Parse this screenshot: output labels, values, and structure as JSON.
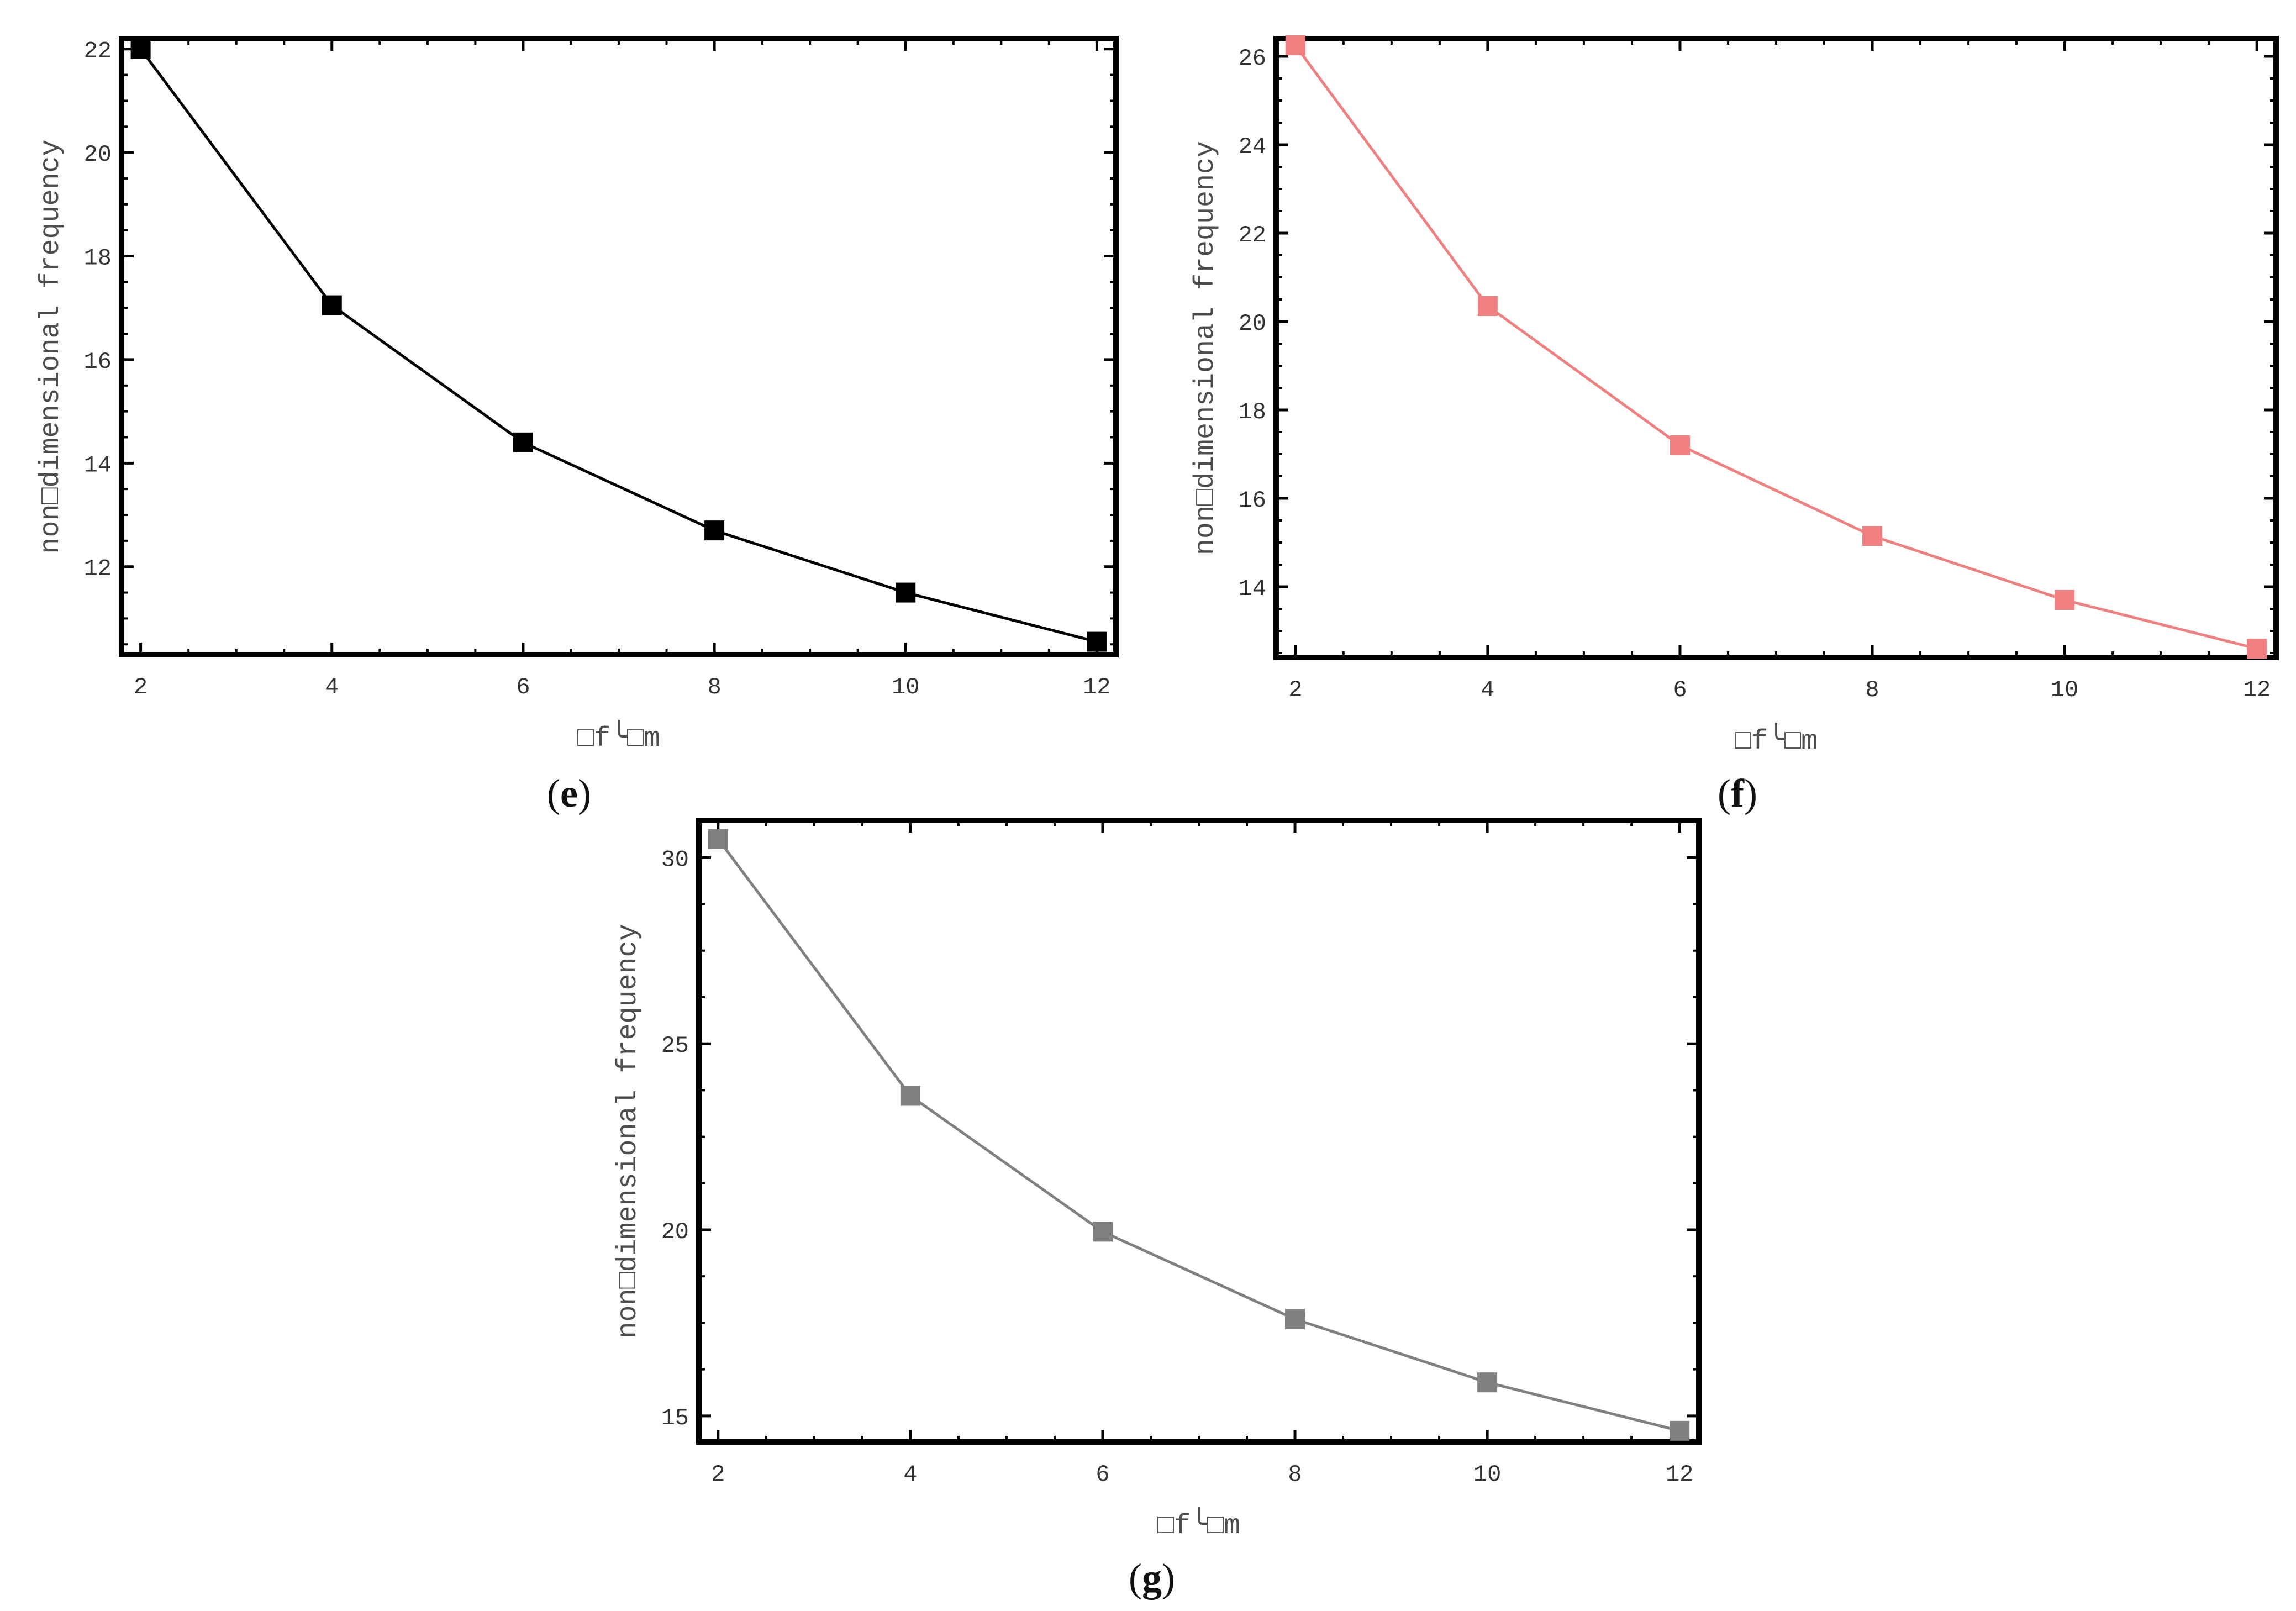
{
  "chart_data": [
    {
      "type": "line",
      "panel_label": "(e)",
      "ylabel": "non□dimensional frequency",
      "xlabel": "□f╰□m",
      "x_ticks": [
        "2",
        "4",
        "6",
        "8",
        "10",
        "12"
      ],
      "y_ticks": [
        "12",
        "14",
        "16",
        "18",
        "20",
        "22"
      ],
      "xlim": [
        1.8,
        12.2
      ],
      "ylim": [
        10.3,
        22.2
      ],
      "color": "#000000",
      "marker": "square",
      "series": [
        {
          "x": [
            2,
            4,
            6,
            8,
            10,
            12
          ],
          "values": [
            22.0,
            17.05,
            14.4,
            12.7,
            11.5,
            10.55
          ]
        }
      ]
    },
    {
      "type": "line",
      "panel_label": "(f)",
      "ylabel": "non□dimensional frequency",
      "xlabel": "□f╰□m",
      "x_ticks": [
        "2",
        "4",
        "6",
        "8",
        "10",
        "12"
      ],
      "y_ticks": [
        "14",
        "16",
        "18",
        "20",
        "22",
        "24",
        "26"
      ],
      "xlim": [
        1.8,
        12.2
      ],
      "ylim": [
        12.4,
        26.4
      ],
      "color": "#f08080",
      "marker": "square",
      "series": [
        {
          "x": [
            2,
            4,
            6,
            8,
            10,
            12
          ],
          "values": [
            26.25,
            20.35,
            17.2,
            15.15,
            13.7,
            12.6
          ]
        }
      ]
    },
    {
      "type": "line",
      "panel_label": "(g)",
      "ylabel": "non□dimensional frequency",
      "xlabel": "□f╰□m",
      "x_ticks": [
        "2",
        "4",
        "6",
        "8",
        "10",
        "12"
      ],
      "y_ticks": [
        "15",
        "20",
        "25",
        "30"
      ],
      "xlim": [
        1.8,
        12.2
      ],
      "ylim": [
        14.3,
        31.0
      ],
      "color": "#808080",
      "marker": "square",
      "series": [
        {
          "x": [
            2,
            4,
            6,
            8,
            10,
            12
          ],
          "values": [
            30.5,
            23.6,
            19.95,
            17.6,
            15.9,
            14.6
          ]
        }
      ]
    }
  ]
}
